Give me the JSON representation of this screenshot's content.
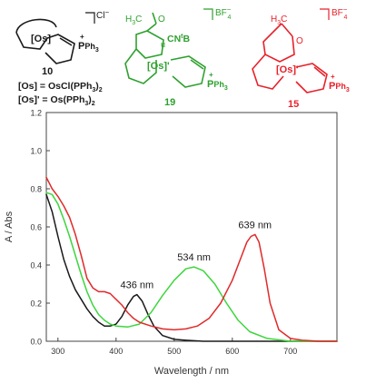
{
  "structures": {
    "s10": {
      "number": "10",
      "core_label": "[Os]",
      "substituent": "P",
      "substituent_plus": "+",
      "substituent_tail": "Ph",
      "substituent_sub": "3",
      "counterion": "Cl",
      "counterion_charge": "−",
      "def1_bracket": "[Os]",
      "def1_eq": " = OsCl(PPh",
      "def1_sub": "3",
      "def1_tail": ")",
      "def1_sub2": "2",
      "def2_bracket": "[Os]'",
      "def2_eq": " = Os(PPh",
      "def2_sub": "3",
      "def2_tail": ")",
      "def2_sub2": "2",
      "color": "#1a1a1a"
    },
    "s19": {
      "number": "19",
      "core_label": "[Os]",
      "core_prime": "'",
      "methyl": "H",
      "methyl_sub": "3",
      "methyl_c": "C",
      "carbonyl_o": "O",
      "isonitrile": "CN",
      "isonitrile_sup": "t",
      "isonitrile_b": "B",
      "isonitrile_u": "u",
      "substituent": "P",
      "substituent_plus": "+",
      "substituent_tail": "Ph",
      "substituent_sub": "3",
      "counterion": "BF",
      "counterion_sub": "4",
      "counterion_charge": "−",
      "color": "#2ea12e"
    },
    "s15": {
      "number": "15",
      "core_label": "[Os]",
      "core_prime": "'",
      "methyl": "H",
      "methyl_sub": "3",
      "methyl_c": "C",
      "carbonyl_o": "O",
      "substituent": "P",
      "substituent_plus": "+",
      "substituent_tail": "Ph",
      "substituent_sub": "3",
      "counterion": "BF",
      "counterion_sub": "4",
      "counterion_charge": "−",
      "color": "#e8212a"
    }
  },
  "chart_data": {
    "type": "line",
    "xlabel": "Wavelength / nm",
    "ylabel": "A / Abs",
    "xlim": [
      280,
      780
    ],
    "ylim": [
      0.0,
      1.2
    ],
    "xticks": [
      300,
      400,
      500,
      600,
      700
    ],
    "yticks": [
      0.0,
      0.2,
      0.4,
      0.6,
      0.8,
      1.0,
      1.2
    ],
    "series": [
      {
        "key": "black",
        "color": "#1a1a1a",
        "x": [
          280,
          290,
          300,
          310,
          320,
          330,
          340,
          350,
          360,
          370,
          380,
          390,
          400,
          410,
          420,
          430,
          436,
          445,
          455,
          465,
          480,
          500,
          520,
          550,
          600,
          650,
          700,
          750,
          780
        ],
        "y": [
          0.77,
          0.68,
          0.55,
          0.43,
          0.34,
          0.27,
          0.22,
          0.17,
          0.13,
          0.1,
          0.08,
          0.08,
          0.09,
          0.13,
          0.19,
          0.235,
          0.245,
          0.21,
          0.14,
          0.08,
          0.03,
          0.01,
          0.005,
          0.0,
          0.0,
          0.0,
          0.0,
          0.0,
          0.0
        ]
      },
      {
        "key": "green",
        "color": "#3cd63c",
        "x": [
          280,
          290,
          300,
          310,
          320,
          330,
          340,
          350,
          360,
          370,
          380,
          390,
          400,
          420,
          440,
          460,
          480,
          500,
          520,
          534,
          550,
          570,
          590,
          610,
          630,
          660,
          700,
          740,
          780
        ],
        "y": [
          0.78,
          0.77,
          0.72,
          0.64,
          0.55,
          0.45,
          0.35,
          0.26,
          0.19,
          0.14,
          0.11,
          0.09,
          0.08,
          0.075,
          0.09,
          0.15,
          0.24,
          0.32,
          0.38,
          0.39,
          0.37,
          0.3,
          0.2,
          0.11,
          0.05,
          0.015,
          0.0,
          0.0,
          0.0
        ]
      },
      {
        "key": "red",
        "color": "#e02a2a",
        "x": [
          280,
          290,
          300,
          310,
          320,
          330,
          340,
          350,
          360,
          370,
          380,
          390,
          400,
          410,
          420,
          430,
          440,
          460,
          480,
          500,
          520,
          540,
          560,
          580,
          600,
          615,
          625,
          632,
          639,
          646,
          655,
          665,
          680,
          700,
          720,
          750,
          780
        ],
        "y": [
          0.86,
          0.8,
          0.76,
          0.71,
          0.65,
          0.56,
          0.45,
          0.33,
          0.28,
          0.26,
          0.26,
          0.25,
          0.22,
          0.19,
          0.15,
          0.12,
          0.1,
          0.08,
          0.065,
          0.06,
          0.065,
          0.08,
          0.12,
          0.2,
          0.32,
          0.44,
          0.52,
          0.55,
          0.56,
          0.52,
          0.38,
          0.2,
          0.06,
          0.015,
          0.005,
          0.0,
          0.0
        ]
      }
    ],
    "annotations": [
      {
        "text": "436 nm",
        "x": 436,
        "y": 0.245,
        "color": "#1a1a1a"
      },
      {
        "text": "534 nm",
        "x": 534,
        "y": 0.39,
        "color": "#1a1a1a"
      },
      {
        "text": "639 nm",
        "x": 639,
        "y": 0.56,
        "color": "#1a1a1a"
      }
    ]
  }
}
